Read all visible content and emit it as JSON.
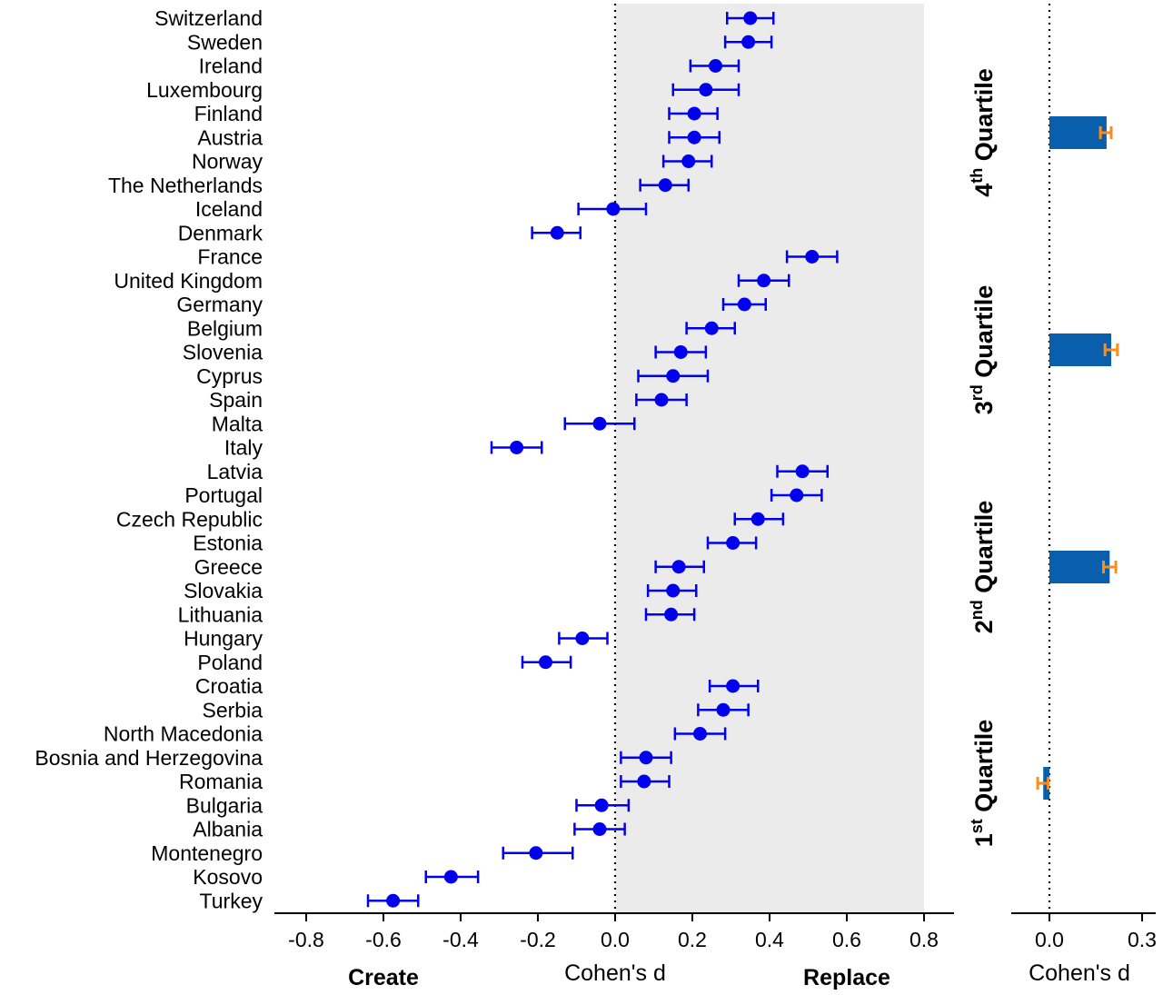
{
  "chart_data": [
    {
      "type": "scatter",
      "xlabel": "Cohen's d",
      "xlabel_left": "Create",
      "xlabel_right": "Replace",
      "xlim": [
        -0.88,
        0.88
      ],
      "xticks": [
        -0.8,
        -0.6,
        -0.4,
        -0.2,
        0.0,
        0.2,
        0.4,
        0.6,
        0.8
      ],
      "xtick_labels": [
        "-0.8",
        "-0.6",
        "-0.4",
        "-0.2",
        "0.0",
        "0.2",
        "0.4",
        "0.6",
        "0.8"
      ],
      "shaded_region": [
        0.0,
        0.8
      ],
      "reference_line": 0.0,
      "point_color": "#0000ee",
      "shade_color": "#ebebeb",
      "countries": [
        "Switzerland",
        "Sweden",
        "Ireland",
        "Luxembourg",
        "Finland",
        "Austria",
        "Norway",
        "The Netherlands",
        "Iceland",
        "Denmark",
        "France",
        "United Kingdom",
        "Germany",
        "Belgium",
        "Slovenia",
        "Cyprus",
        "Spain",
        "Malta",
        "Italy",
        "Latvia",
        "Portugal",
        "Czech Republic",
        "Estonia",
        "Greece",
        "Slovakia",
        "Lithuania",
        "Hungary",
        "Poland",
        "Croatia",
        "Serbia",
        "North Macedonia",
        "Bosnia and Herzegovina",
        "Romania",
        "Bulgaria",
        "Albania",
        "Montenegro",
        "Kosovo",
        "Turkey"
      ],
      "values": [
        0.35,
        0.345,
        0.26,
        0.235,
        0.205,
        0.205,
        0.19,
        0.13,
        -0.005,
        -0.15,
        0.51,
        0.385,
        0.335,
        0.25,
        0.17,
        0.15,
        0.12,
        -0.04,
        -0.255,
        0.485,
        0.47,
        0.37,
        0.305,
        0.165,
        0.15,
        0.145,
        -0.085,
        -0.18,
        0.305,
        0.28,
        0.22,
        0.08,
        0.075,
        -0.035,
        -0.04,
        -0.205,
        -0.425,
        -0.575
      ],
      "ci_low": [
        0.29,
        0.285,
        0.195,
        0.15,
        0.14,
        0.14,
        0.125,
        0.065,
        -0.095,
        -0.215,
        0.445,
        0.32,
        0.28,
        0.185,
        0.105,
        0.06,
        0.055,
        -0.13,
        -0.32,
        0.42,
        0.405,
        0.31,
        0.24,
        0.105,
        0.085,
        0.08,
        -0.145,
        -0.24,
        0.245,
        0.215,
        0.155,
        0.015,
        0.015,
        -0.1,
        -0.105,
        -0.29,
        -0.49,
        -0.64
      ],
      "ci_high": [
        0.41,
        0.405,
        0.32,
        0.32,
        0.265,
        0.27,
        0.25,
        0.19,
        0.08,
        -0.09,
        0.575,
        0.45,
        0.39,
        0.31,
        0.235,
        0.24,
        0.185,
        0.05,
        -0.19,
        0.55,
        0.535,
        0.435,
        0.365,
        0.23,
        0.21,
        0.205,
        -0.02,
        -0.115,
        0.37,
        0.345,
        0.285,
        0.145,
        0.14,
        0.035,
        0.025,
        -0.11,
        -0.355,
        -0.51
      ]
    },
    {
      "type": "bar",
      "orientation": "horizontal",
      "xlabel": "Cohen's d",
      "xlim": [
        -0.045,
        0.32
      ],
      "xticks": [
        0.0,
        0.3
      ],
      "xtick_labels": [
        "0.0",
        "0.3"
      ],
      "reference_line": 0.0,
      "bar_color": "#0a5fad",
      "error_color": "#ff8c1a",
      "groups": [
        {
          "label_base": "Quartile",
          "ordinal": "4",
          "suffix": "th",
          "value": 0.185,
          "ci": [
            0.165,
            0.2
          ]
        },
        {
          "label_base": "Quartile",
          "ordinal": "3",
          "suffix": "rd",
          "value": 0.2,
          "ci": [
            0.18,
            0.22
          ]
        },
        {
          "label_base": "Quartile",
          "ordinal": "2",
          "suffix": "nd",
          "value": 0.195,
          "ci": [
            0.175,
            0.215
          ]
        },
        {
          "label_base": "Quartile",
          "ordinal": "1",
          "suffix": "st",
          "value": -0.02,
          "ci": [
            -0.038,
            -0.004
          ]
        }
      ]
    }
  ]
}
